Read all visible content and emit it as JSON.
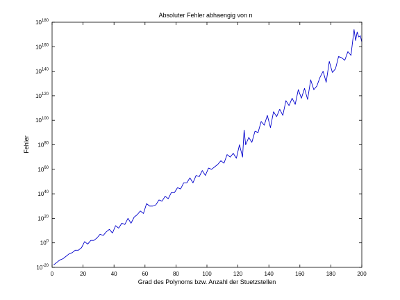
{
  "chart_data": {
    "type": "line",
    "title": "Absoluter Fehler abhaengig von n",
    "xlabel": "Grad des Polynoms bzw. Anzahl der Stuetzstellen",
    "ylabel": "Fehler",
    "xlim": [
      0,
      200
    ],
    "ylim_log10": [
      -20,
      180
    ],
    "y_scale": "log",
    "grid": false,
    "x_ticks": [
      0,
      20,
      40,
      60,
      80,
      100,
      120,
      140,
      160,
      180,
      200
    ],
    "y_tick_labels": [
      {
        "base": "10",
        "exp": "-20",
        "value_log10": -20
      },
      {
        "base": "10",
        "exp": "0",
        "value_log10": 0
      },
      {
        "base": "10",
        "exp": "20",
        "value_log10": 20
      },
      {
        "base": "10",
        "exp": "40",
        "value_log10": 40
      },
      {
        "base": "10",
        "exp": "60",
        "value_log10": 60
      },
      {
        "base": "10",
        "exp": "80",
        "value_log10": 80
      },
      {
        "base": "10",
        "exp": "100",
        "value_log10": 100
      },
      {
        "base": "10",
        "exp": "120",
        "value_log10": 120
      },
      {
        "base": "10",
        "exp": "140",
        "value_log10": 140
      },
      {
        "base": "10",
        "exp": "160",
        "value_log10": 160
      },
      {
        "base": "10",
        "exp": "180",
        "value_log10": 180
      }
    ],
    "series": [
      {
        "color": "#0000cc",
        "x": [
          1,
          3,
          5,
          7,
          9,
          11,
          13,
          15,
          17,
          19,
          21,
          23,
          25,
          27,
          29,
          31,
          33,
          35,
          37,
          39,
          41,
          43,
          45,
          47,
          49,
          51,
          53,
          55,
          57,
          59,
          61,
          63,
          65,
          67,
          69,
          71,
          73,
          75,
          77,
          79,
          81,
          83,
          85,
          87,
          89,
          91,
          93,
          95,
          97,
          99,
          101,
          103,
          105,
          107,
          109,
          111,
          113,
          115,
          117,
          119,
          121,
          123,
          124,
          125,
          127,
          129,
          131,
          133,
          135,
          137,
          139,
          141,
          143,
          145,
          147,
          149,
          151,
          153,
          155,
          157,
          159,
          161,
          163,
          165,
          167,
          169,
          171,
          173,
          175,
          177,
          179,
          181,
          183,
          185,
          187,
          189,
          191,
          193,
          195,
          196,
          197,
          198,
          199,
          200
        ],
        "values_log10": [
          -18,
          -16,
          -14,
          -13,
          -11,
          -9,
          -8,
          -6,
          -6,
          -4,
          1,
          -1,
          2,
          2,
          4,
          7,
          6,
          9,
          11,
          8,
          14,
          12,
          16,
          15,
          20,
          16,
          21,
          23,
          26,
          24,
          32,
          30,
          30,
          31,
          35,
          34,
          38,
          36,
          41,
          41,
          45,
          44,
          49,
          49,
          53,
          49,
          55,
          54,
          59,
          55,
          61,
          60,
          62,
          64,
          67,
          65,
          72,
          70,
          73,
          69,
          80,
          70,
          92,
          80,
          86,
          82,
          91,
          90,
          99,
          96,
          104,
          94,
          107,
          103,
          109,
          104,
          116,
          112,
          118,
          113,
          125,
          118,
          126,
          117,
          133,
          125,
          128,
          135,
          140,
          131,
          148,
          139,
          142,
          152,
          151,
          149,
          156,
          153,
          174,
          165,
          172,
          168,
          169,
          164
        ]
      }
    ]
  }
}
